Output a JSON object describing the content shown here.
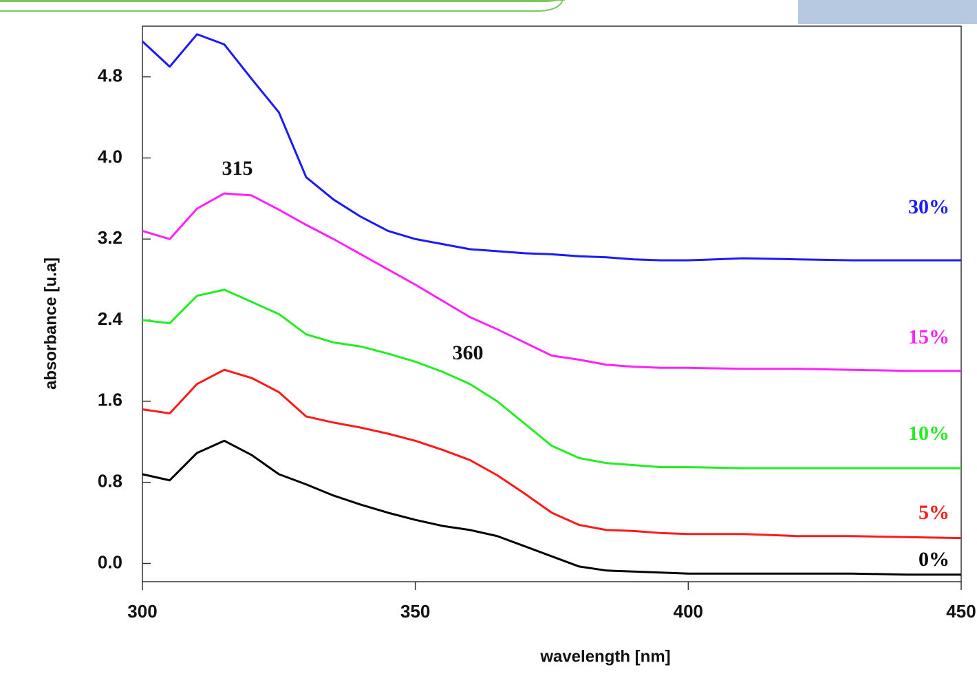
{
  "chart_data": {
    "type": "line",
    "xlabel": "wavelength  [nm]",
    "ylabel": "absorbance [u.a]",
    "annotations": [
      "315",
      "360"
    ],
    "x": [
      300,
      305,
      310,
      315,
      320,
      325,
      330,
      335,
      340,
      345,
      350,
      355,
      360,
      365,
      370,
      375,
      380,
      385,
      390,
      395,
      400,
      410,
      420,
      430,
      440,
      450
    ],
    "series": [
      {
        "name": "30%",
        "color": "#1a1aff",
        "values": [
          5.15,
          4.9,
          5.22,
          5.12,
          4.78,
          4.45,
          3.81,
          3.59,
          3.42,
          3.28,
          3.2,
          3.15,
          3.1,
          3.08,
          3.06,
          3.05,
          3.03,
          3.02,
          3.0,
          2.99,
          2.99,
          3.01,
          3.0,
          2.99,
          2.99,
          2.99
        ]
      },
      {
        "name": "15%",
        "color": "#ff22ff",
        "values": [
          3.28,
          3.2,
          3.5,
          3.65,
          3.63,
          3.49,
          3.34,
          3.2,
          3.05,
          2.9,
          2.75,
          2.59,
          2.43,
          2.31,
          2.18,
          2.05,
          2.01,
          1.96,
          1.94,
          1.93,
          1.93,
          1.92,
          1.92,
          1.91,
          1.9,
          1.9
        ]
      },
      {
        "name": "10%",
        "color": "#22ee22",
        "values": [
          2.4,
          2.37,
          2.64,
          2.7,
          2.58,
          2.46,
          2.26,
          2.18,
          2.14,
          2.07,
          1.99,
          1.89,
          1.77,
          1.6,
          1.38,
          1.16,
          1.04,
          0.99,
          0.97,
          0.95,
          0.95,
          0.94,
          0.94,
          0.94,
          0.94,
          0.94
        ]
      },
      {
        "name": "5%",
        "color": "#ff1a1a",
        "values": [
          1.52,
          1.48,
          1.77,
          1.91,
          1.83,
          1.69,
          1.45,
          1.39,
          1.34,
          1.28,
          1.21,
          1.12,
          1.02,
          0.87,
          0.69,
          0.5,
          0.38,
          0.33,
          0.32,
          0.3,
          0.29,
          0.29,
          0.27,
          0.27,
          0.26,
          0.25
        ]
      },
      {
        "name": "0%",
        "color": "#000000",
        "values": [
          0.88,
          0.82,
          1.09,
          1.21,
          1.07,
          0.88,
          0.78,
          0.67,
          0.58,
          0.5,
          0.43,
          0.37,
          0.33,
          0.27,
          0.17,
          0.07,
          -0.03,
          -0.07,
          -0.08,
          -0.09,
          -0.1,
          -0.1,
          -0.1,
          -0.1,
          -0.11,
          -0.11
        ]
      }
    ],
    "xlim": [
      300,
      450
    ],
    "xticks": [
      300,
      350,
      400,
      450
    ],
    "ylim": [
      -0.18,
      5.3
    ],
    "yticks": [
      {
        "value": 0,
        "label": "0.0"
      },
      0.8,
      1.6,
      2.4,
      3.2,
      {
        "value": 4,
        "label": "4.0"
      },
      4.8
    ]
  }
}
